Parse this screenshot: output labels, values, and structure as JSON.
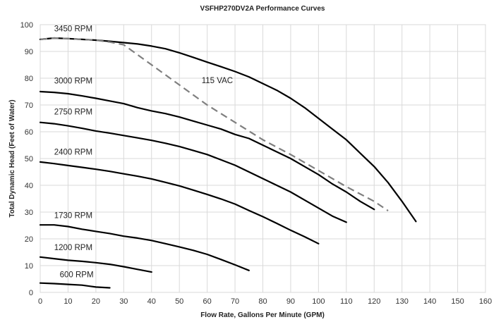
{
  "chart_data": {
    "type": "line",
    "title": "VSFHP270DV2A Performance Curves",
    "xlabel": "Flow Rate, Gallons Per Minute (GPM)",
    "ylabel": "Total Dynamic Head (Feet of Water)",
    "xlim": [
      0,
      160
    ],
    "ylim": [
      0,
      100
    ],
    "xticks": [
      0,
      10,
      20,
      30,
      40,
      50,
      60,
      70,
      80,
      90,
      100,
      110,
      120,
      130,
      140,
      150,
      160
    ],
    "yticks": [
      0,
      10,
      20,
      30,
      40,
      50,
      60,
      70,
      80,
      90,
      100
    ],
    "grid": true,
    "series": [
      {
        "name": "3450 RPM",
        "style": "solid",
        "color": "#000000",
        "label_at": [
          5,
          97.5
        ],
        "points": [
          [
            0,
            94.5
          ],
          [
            5,
            95
          ],
          [
            10,
            94.8
          ],
          [
            15,
            94.5
          ],
          [
            20,
            94.2
          ],
          [
            25,
            93.8
          ],
          [
            30,
            93.3
          ],
          [
            35,
            92.8
          ],
          [
            40,
            92
          ],
          [
            45,
            91
          ],
          [
            50,
            89.5
          ],
          [
            55,
            87.8
          ],
          [
            60,
            86
          ],
          [
            65,
            84.3
          ],
          [
            70,
            82.5
          ],
          [
            75,
            80.5
          ],
          [
            80,
            78
          ],
          [
            85,
            75.5
          ],
          [
            90,
            72.5
          ],
          [
            95,
            69
          ],
          [
            100,
            65
          ],
          [
            105,
            61
          ],
          [
            110,
            57
          ],
          [
            115,
            52
          ],
          [
            120,
            47
          ],
          [
            125,
            41
          ],
          [
            130,
            34
          ],
          [
            135,
            26.5
          ]
        ]
      },
      {
        "name": "3000 RPM",
        "style": "solid",
        "color": "#000000",
        "label_at": [
          5,
          78
        ],
        "points": [
          [
            0,
            75
          ],
          [
            5,
            74.7
          ],
          [
            10,
            74.2
          ],
          [
            15,
            73.4
          ],
          [
            20,
            72.5
          ],
          [
            25,
            71.5
          ],
          [
            30,
            70.5
          ],
          [
            35,
            69
          ],
          [
            40,
            67.8
          ],
          [
            45,
            66.8
          ],
          [
            50,
            65.5
          ],
          [
            55,
            64
          ],
          [
            60,
            62.5
          ],
          [
            65,
            61
          ],
          [
            70,
            59
          ],
          [
            75,
            57.5
          ],
          [
            80,
            55
          ],
          [
            85,
            52.5
          ],
          [
            90,
            50
          ],
          [
            95,
            47
          ],
          [
            100,
            44
          ],
          [
            105,
            40.5
          ],
          [
            110,
            37.5
          ],
          [
            115,
            34
          ],
          [
            120,
            31
          ]
        ]
      },
      {
        "name": "2750 RPM",
        "style": "solid",
        "color": "#000000",
        "label_at": [
          5,
          66.5
        ],
        "points": [
          [
            0,
            63.5
          ],
          [
            5,
            63
          ],
          [
            10,
            62.2
          ],
          [
            15,
            61.3
          ],
          [
            20,
            60.3
          ],
          [
            25,
            59.5
          ],
          [
            30,
            58.6
          ],
          [
            35,
            57.7
          ],
          [
            40,
            56.8
          ],
          [
            45,
            55.7
          ],
          [
            50,
            54.5
          ],
          [
            55,
            53
          ],
          [
            60,
            51.5
          ],
          [
            65,
            49.5
          ],
          [
            70,
            47.5
          ],
          [
            75,
            45
          ],
          [
            80,
            42.5
          ],
          [
            85,
            40
          ],
          [
            90,
            37.5
          ],
          [
            95,
            34.5
          ],
          [
            100,
            31.5
          ],
          [
            105,
            28.5
          ],
          [
            110,
            26.2
          ]
        ]
      },
      {
        "name": "2400 RPM",
        "style": "solid",
        "color": "#000000",
        "label_at": [
          5,
          51.5
        ],
        "points": [
          [
            0,
            48.7
          ],
          [
            5,
            48.1
          ],
          [
            10,
            47.4
          ],
          [
            15,
            46.7
          ],
          [
            20,
            46
          ],
          [
            25,
            45.2
          ],
          [
            30,
            44.3
          ],
          [
            35,
            43.4
          ],
          [
            40,
            42.4
          ],
          [
            45,
            41.1
          ],
          [
            50,
            39.8
          ],
          [
            55,
            38.2
          ],
          [
            60,
            36.6
          ],
          [
            65,
            34.9
          ],
          [
            70,
            33
          ],
          [
            75,
            30.6
          ],
          [
            80,
            28.3
          ],
          [
            85,
            25.8
          ],
          [
            90,
            23.2
          ],
          [
            95,
            20.8
          ],
          [
            100,
            18.2
          ]
        ]
      },
      {
        "name": "1730 RPM",
        "style": "solid",
        "color": "#000000",
        "label_at": [
          5,
          27.8
        ],
        "points": [
          [
            0,
            25.2
          ],
          [
            5,
            25.2
          ],
          [
            10,
            24.6
          ],
          [
            15,
            23.6
          ],
          [
            20,
            22.8
          ],
          [
            25,
            22
          ],
          [
            30,
            21
          ],
          [
            35,
            20.3
          ],
          [
            40,
            19.4
          ],
          [
            45,
            18.2
          ],
          [
            50,
            17
          ],
          [
            55,
            15.7
          ],
          [
            60,
            14.2
          ],
          [
            65,
            12.3
          ],
          [
            70,
            10.3
          ],
          [
            75,
            8.2
          ]
        ]
      },
      {
        "name": "1200 RPM",
        "style": "solid",
        "color": "#000000",
        "label_at": [
          5,
          15.8
        ],
        "points": [
          [
            0,
            13.2
          ],
          [
            5,
            12.6
          ],
          [
            10,
            12
          ],
          [
            15,
            11.6
          ],
          [
            20,
            11.1
          ],
          [
            25,
            10.5
          ],
          [
            30,
            9.6
          ],
          [
            35,
            8.6
          ],
          [
            40,
            7.6
          ]
        ]
      },
      {
        "name": "600 RPM",
        "style": "solid",
        "color": "#000000",
        "label_at": [
          7,
          5.7
        ],
        "points": [
          [
            0,
            3.5
          ],
          [
            5,
            3.3
          ],
          [
            10,
            3
          ],
          [
            15,
            2.7
          ],
          [
            20,
            2
          ],
          [
            25,
            1.7
          ]
        ]
      },
      {
        "name": "115 VAC",
        "style": "dashed",
        "color": "#7f7f7f",
        "label_at": [
          58,
          78.2
        ],
        "points": [
          [
            0,
            94.5
          ],
          [
            5,
            95
          ],
          [
            10,
            94.8
          ],
          [
            15,
            94.5
          ],
          [
            20,
            94.2
          ],
          [
            25,
            93.5
          ],
          [
            30,
            92.5
          ],
          [
            40,
            85
          ],
          [
            50,
            77.5
          ],
          [
            60,
            70
          ],
          [
            70,
            63.5
          ],
          [
            80,
            57
          ],
          [
            90,
            51.5
          ],
          [
            100,
            45.5
          ],
          [
            110,
            39.5
          ],
          [
            120,
            34
          ],
          [
            125,
            30.5
          ]
        ]
      }
    ]
  }
}
